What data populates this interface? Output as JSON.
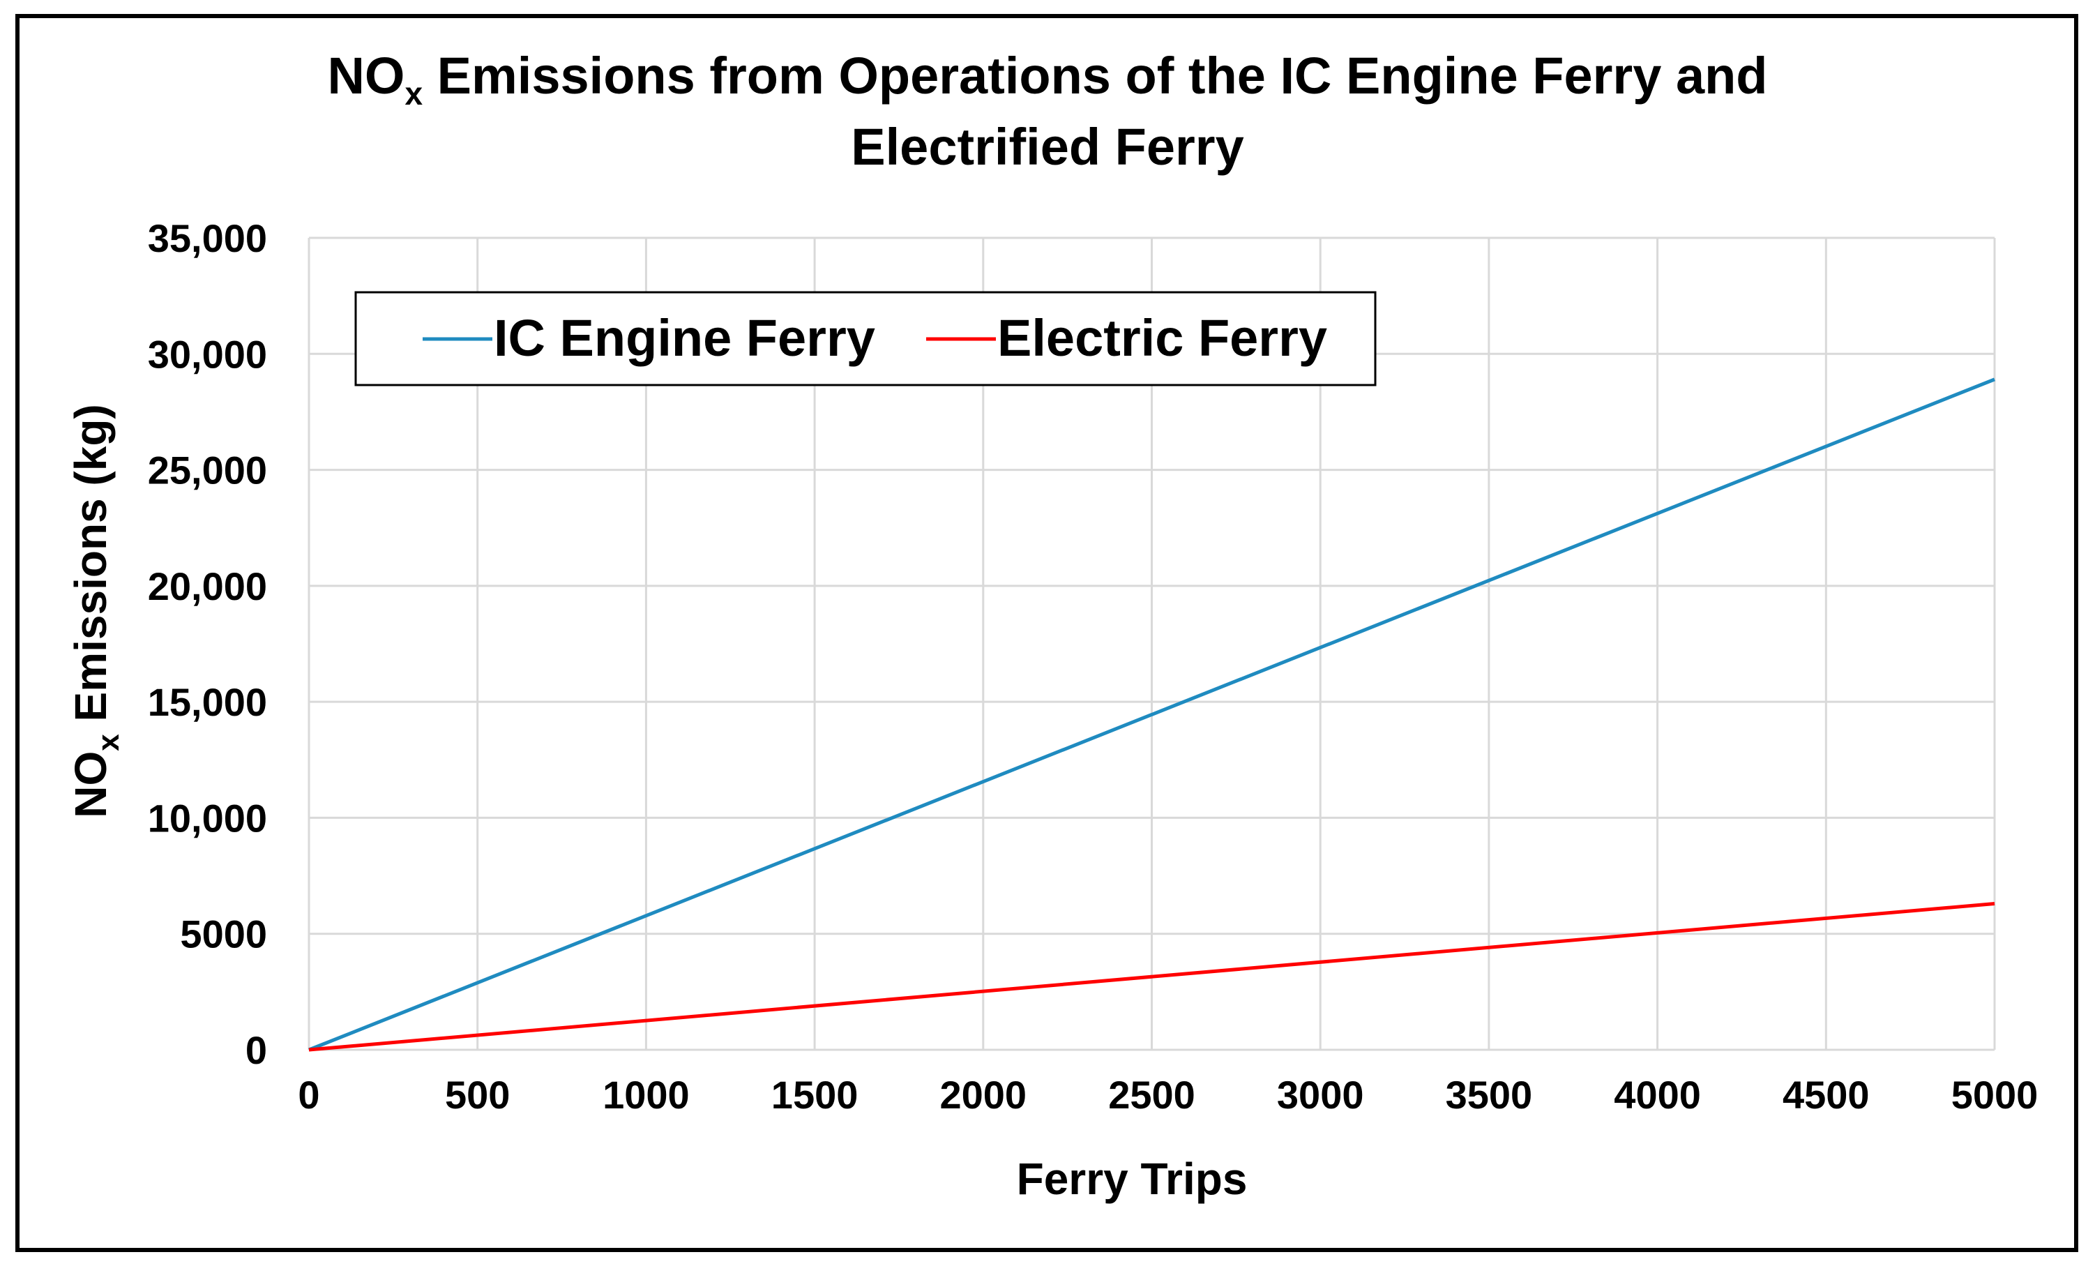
{
  "chart_data": {
    "type": "line",
    "title_part1": "NO",
    "title_sub": "x",
    "title_part2": " Emissions from Operations of the IC Engine Ferry and",
    "title_line2": "Electrified Ferry",
    "xlabel": "Ferry Trips",
    "ylabel_part1": "NO",
    "ylabel_sub": "x",
    "ylabel_part2": " Emissions (kg)",
    "xlim": [
      0,
      5000
    ],
    "ylim": [
      0,
      35000
    ],
    "x_ticks": [
      0,
      500,
      1000,
      1500,
      2000,
      2500,
      3000,
      3500,
      4000,
      4500,
      5000
    ],
    "x_tick_labels": [
      "0",
      "500",
      "1000",
      "1500",
      "2000",
      "2500",
      "3000",
      "3500",
      "4000",
      "4500",
      "5000"
    ],
    "y_ticks": [
      0,
      5000,
      10000,
      15000,
      20000,
      25000,
      30000,
      35000
    ],
    "y_tick_labels": [
      "0",
      "5000",
      "10,000",
      "15,000",
      "20,000",
      "25,000",
      "30,000",
      "35,000"
    ],
    "grid": true,
    "legend_position": "top-left",
    "series": [
      {
        "name": "IC Engine Ferry",
        "color": "#1f8bc0",
        "x": [
          0,
          5000
        ],
        "y": [
          0,
          28900
        ]
      },
      {
        "name": "Electric Ferry",
        "color": "#ff0000",
        "x": [
          0,
          5000
        ],
        "y": [
          0,
          6300
        ]
      }
    ]
  }
}
